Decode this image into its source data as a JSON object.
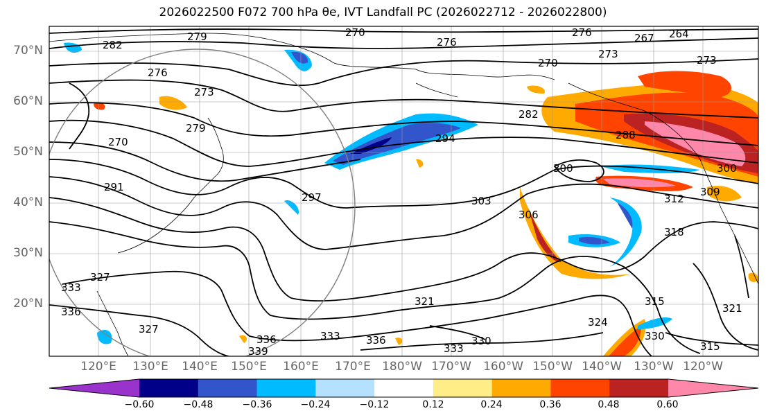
{
  "title": "2026022500 F072 700 hPa θe, IVT Landfall PC (2026022712 - 2026022800)",
  "map": {
    "lat_labels": [
      "70°N",
      "60°N",
      "50°N",
      "40°N",
      "30°N",
      "20°N"
    ],
    "lon_labels": [
      "120°E",
      "130°E",
      "140°E",
      "150°E",
      "160°E",
      "170°E",
      "180°W",
      "170°W",
      "160°W",
      "150°W",
      "140°W",
      "130°W",
      "120°W"
    ],
    "contour_labels": [
      "282",
      "279",
      "276",
      "276",
      "270",
      "267",
      "264",
      "273",
      "270",
      "276",
      "273",
      "279",
      "270",
      "273",
      "282",
      "288",
      "294",
      "291",
      "297",
      "300",
      "300",
      "303",
      "306",
      "309",
      "312",
      "318",
      "315",
      "321",
      "324",
      "327",
      "327",
      "330",
      "330",
      "333",
      "333",
      "333",
      "336",
      "336",
      "336",
      "339",
      "315",
      "321"
    ],
    "theta_e_contour_color": "#000000",
    "circle_color": "#808080"
  },
  "colorbar": {
    "colors": [
      "#9933cc",
      "#000088",
      "#3355cc",
      "#00bbff",
      "#b3e1ff",
      "#ffffff",
      "#ffee88",
      "#ffaa00",
      "#ff4400",
      "#bb2222",
      "#ff88aa"
    ],
    "tick_labels": [
      "−0.60",
      "−0.48",
      "−0.36",
      "−0.24",
      "−0.12",
      "0.12",
      "0.24",
      "0.36",
      "0.48",
      "0.60"
    ]
  }
}
